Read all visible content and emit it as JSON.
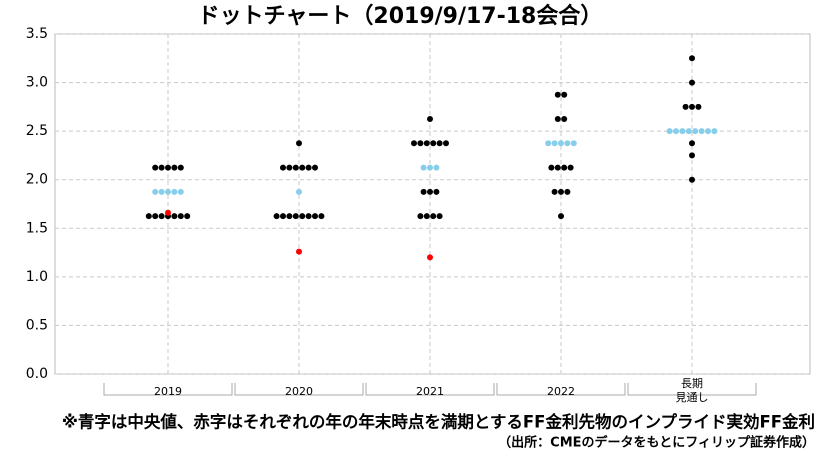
{
  "chart_data": {
    "type": "dot",
    "title": "ドットチャート（2019/9/17-18会合）",
    "categories": [
      "2019",
      "2020",
      "2021",
      "2022",
      "長期\n見通し"
    ],
    "series": [
      {
        "color": "#000000",
        "values": [
          [
            2.125,
            2.125,
            2.125,
            2.125,
            2.125,
            1.625,
            1.625,
            1.625,
            1.625,
            1.625,
            1.625,
            1.625
          ],
          [
            2.375,
            2.125,
            2.125,
            2.125,
            2.125,
            2.125,
            2.125,
            1.625,
            1.625,
            1.625,
            1.625,
            1.625,
            1.625,
            1.625,
            1.625
          ],
          [
            2.625,
            2.375,
            2.375,
            2.375,
            2.375,
            2.375,
            2.375,
            1.875,
            1.875,
            1.875,
            1.625,
            1.625,
            1.625,
            1.625
          ],
          [
            2.875,
            2.875,
            2.625,
            2.625,
            2.125,
            2.125,
            2.125,
            2.125,
            1.875,
            1.875,
            1.875,
            1.625
          ],
          [
            3.25,
            3.0,
            2.75,
            2.75,
            2.75,
            2.375,
            2.25,
            2.0
          ]
        ]
      },
      {
        "color": "#87ceeb",
        "values": [
          [
            1.875,
            1.875,
            1.875,
            1.875,
            1.875
          ],
          [
            1.875
          ],
          [
            2.125,
            2.125,
            2.125
          ],
          [
            2.375,
            2.375,
            2.375,
            2.375,
            2.375
          ],
          [
            2.5,
            2.5,
            2.5,
            2.5,
            2.5,
            2.5,
            2.5,
            2.5
          ]
        ]
      },
      {
        "color": "#ff0000",
        "values": [
          1.66,
          1.26,
          1.2,
          null,
          null
        ]
      }
    ],
    "ylim": [
      0,
      3.5
    ],
    "yticks": [
      {
        "value": 0,
        "label": "0.0"
      },
      0.5,
      {
        "value": 1,
        "label": "1.0"
      },
      1.5,
      {
        "value": 2,
        "label": "2.0"
      },
      2.5,
      {
        "value": 3,
        "label": "3.0"
      },
      3.5
    ],
    "grid": true,
    "footnote": "※青字は中央値、赤字はそれぞれの年の年末時点を満期とするFF金利先物のインプライド実効FF金利",
    "source": "（出所：CMEのデータをもとにフィリップ証券作成）"
  }
}
